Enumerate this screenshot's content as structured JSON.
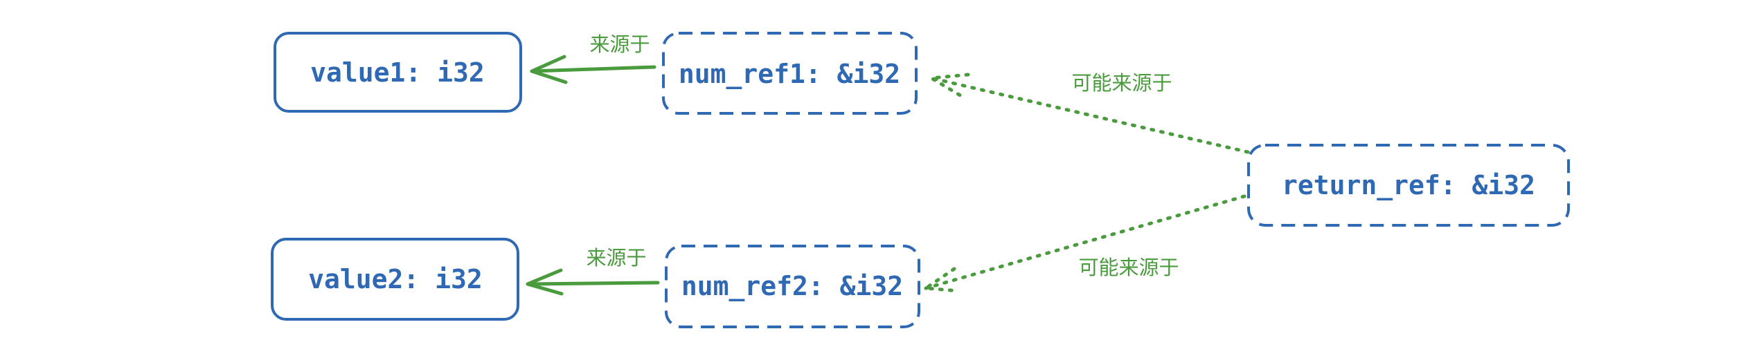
{
  "colors": {
    "node": "#2f68b3",
    "edge": "#4a9b3d",
    "background": "#ffffff"
  },
  "nodes": {
    "value1": "value1: i32",
    "value2": "value2: i32",
    "num_ref1": "num_ref1: &i32",
    "num_ref2": "num_ref2: &i32",
    "return_ref": "return_ref: &i32"
  },
  "edges": {
    "ref1_to_value1": "来源于",
    "ref2_to_value2": "来源于",
    "return_to_ref1": "可能来源于",
    "return_to_ref2": "可能来源于"
  }
}
